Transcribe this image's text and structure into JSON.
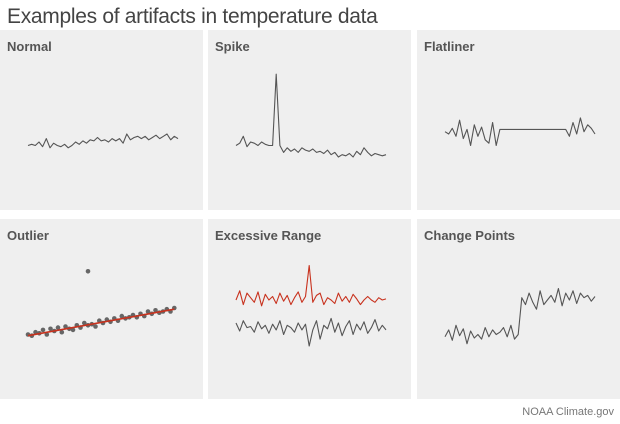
{
  "header": {
    "title": "Examples of artifacts in temperature data"
  },
  "credit": "NOAA Climate.gov",
  "colors": {
    "background": "#efefef",
    "line": "#555555",
    "trend": "#c8321e",
    "red_series": "#c8321e",
    "dots": "#666666"
  },
  "chart_data": [
    {
      "type": "line",
      "title": "Normal",
      "ylim": [
        0,
        100
      ],
      "x": [
        0,
        1,
        2,
        3,
        4,
        5,
        6,
        7,
        8,
        9,
        10,
        11,
        12,
        13,
        14,
        15,
        16,
        17,
        18,
        19,
        20,
        21,
        22,
        23,
        24,
        25,
        26,
        27,
        28,
        29,
        30,
        31,
        32,
        33,
        34,
        35,
        36,
        37,
        38,
        39,
        40,
        41
      ],
      "series": [
        {
          "values": [
            30,
            31,
            30,
            33,
            29,
            36,
            28,
            32,
            30,
            29,
            31,
            28,
            30,
            33,
            31,
            34,
            32,
            35,
            34,
            37,
            34,
            35,
            33,
            36,
            34,
            36,
            32,
            40,
            35,
            37,
            38,
            36,
            38,
            35,
            37,
            39,
            36,
            38,
            40,
            35,
            38,
            36
          ]
        }
      ]
    },
    {
      "type": "line",
      "title": "Spike",
      "ylim": [
        0,
        100
      ],
      "x": [
        0,
        1,
        2,
        3,
        4,
        5,
        6,
        7,
        8,
        9,
        10,
        11,
        12,
        13,
        14,
        15,
        16,
        17,
        18,
        19,
        20,
        21,
        22,
        23,
        24,
        25,
        26,
        27,
        28,
        29,
        30,
        31,
        32,
        33,
        34,
        35,
        36,
        37,
        38,
        39,
        40,
        41
      ],
      "series": [
        {
          "values": [
            30,
            32,
            38,
            29,
            33,
            32,
            30,
            33,
            31,
            30,
            30,
            92,
            30,
            24,
            28,
            25,
            27,
            24,
            28,
            26,
            25,
            27,
            24,
            25,
            23,
            26,
            22,
            24,
            20,
            22,
            21,
            23,
            20,
            25,
            22,
            28,
            24,
            21,
            23,
            22,
            21,
            22
          ]
        }
      ]
    },
    {
      "type": "line",
      "title": "Flatliner",
      "ylim": [
        0,
        100
      ],
      "x": [
        0,
        1,
        2,
        3,
        4,
        5,
        6,
        7,
        8,
        9,
        10,
        11,
        12,
        13,
        14,
        15,
        16,
        17,
        18,
        19,
        20,
        21,
        22,
        23,
        24,
        25,
        26,
        27,
        28,
        29,
        30,
        31,
        32,
        33,
        34,
        35,
        36,
        37,
        38,
        39,
        40,
        41
      ],
      "series": [
        {
          "values": [
            42,
            40,
            45,
            38,
            52,
            36,
            44,
            30,
            48,
            38,
            46,
            35,
            32,
            50,
            30,
            44,
            44,
            44,
            44,
            44,
            44,
            44,
            44,
            44,
            44,
            44,
            44,
            44,
            44,
            44,
            44,
            44,
            44,
            44,
            38,
            50,
            40,
            54,
            42,
            48,
            45,
            40
          ]
        }
      ]
    },
    {
      "type": "scatter",
      "title": "Outlier",
      "xlim": [
        0,
        40
      ],
      "ylim": [
        0,
        100
      ],
      "points": [
        [
          0,
          30
        ],
        [
          1,
          29
        ],
        [
          2,
          32
        ],
        [
          3,
          31
        ],
        [
          4,
          34
        ],
        [
          5,
          30
        ],
        [
          6,
          35
        ],
        [
          7,
          33
        ],
        [
          8,
          36
        ],
        [
          9,
          32
        ],
        [
          10,
          37
        ],
        [
          11,
          35
        ],
        [
          12,
          34
        ],
        [
          13,
          38
        ],
        [
          14,
          36
        ],
        [
          15,
          40
        ],
        [
          16,
          38
        ],
        [
          17,
          39
        ],
        [
          18,
          37
        ],
        [
          19,
          42
        ],
        [
          20,
          40
        ],
        [
          21,
          43
        ],
        [
          22,
          41
        ],
        [
          23,
          44
        ],
        [
          24,
          42
        ],
        [
          25,
          46
        ],
        [
          26,
          44
        ],
        [
          27,
          45
        ],
        [
          28,
          47
        ],
        [
          29,
          45
        ],
        [
          30,
          48
        ],
        [
          31,
          46
        ],
        [
          32,
          50
        ],
        [
          33,
          48
        ],
        [
          34,
          51
        ],
        [
          35,
          49
        ],
        [
          36,
          50
        ],
        [
          37,
          52
        ],
        [
          38,
          50
        ],
        [
          39,
          53
        ],
        [
          16,
          85
        ]
      ],
      "trend": {
        "x": [
          0,
          39
        ],
        "y": [
          29,
          52
        ]
      }
    },
    {
      "type": "line",
      "title": "Excessive Range",
      "ylim": [
        0,
        100
      ],
      "x": [
        0,
        1,
        2,
        3,
        4,
        5,
        6,
        7,
        8,
        9,
        10,
        11,
        12,
        13,
        14,
        15,
        16,
        17,
        18,
        19,
        20,
        21,
        22,
        23,
        24,
        25,
        26,
        27,
        28,
        29,
        30,
        31,
        32,
        33,
        34,
        35,
        36,
        37,
        38,
        39,
        40,
        41
      ],
      "series": [
        {
          "values": [
            60,
            68,
            56,
            66,
            62,
            58,
            67,
            55,
            65,
            60,
            63,
            57,
            66,
            59,
            64,
            56,
            62,
            67,
            58,
            63,
            90,
            58,
            64,
            66,
            56,
            62,
            60,
            57,
            66,
            59,
            63,
            58,
            65,
            61,
            56,
            60,
            63,
            60,
            58,
            62,
            60,
            61
          ]
        },
        {
          "values": [
            40,
            33,
            42,
            36,
            37,
            32,
            41,
            35,
            38,
            31,
            39,
            34,
            42,
            30,
            38,
            36,
            32,
            40,
            34,
            39,
            20,
            34,
            42,
            26,
            38,
            35,
            44,
            32,
            40,
            29,
            37,
            42,
            30,
            39,
            34,
            41,
            31,
            36,
            43,
            33,
            38,
            34
          ]
        }
      ]
    },
    {
      "type": "line",
      "title": "Change Points",
      "ylim": [
        0,
        100
      ],
      "x": [
        0,
        1,
        2,
        3,
        4,
        5,
        6,
        7,
        8,
        9,
        10,
        11,
        12,
        13,
        14,
        15,
        16,
        17,
        18,
        19,
        20,
        21,
        22,
        23,
        24,
        25,
        26,
        27,
        28,
        29,
        30,
        31,
        32,
        33,
        34,
        35,
        36,
        37,
        38,
        39,
        40,
        41
      ],
      "series": [
        {
          "values": [
            28,
            34,
            25,
            38,
            29,
            35,
            22,
            33,
            27,
            30,
            26,
            36,
            28,
            34,
            30,
            32,
            36,
            28,
            38,
            26,
            30,
            62,
            56,
            66,
            58,
            52,
            68,
            56,
            60,
            64,
            58,
            70,
            55,
            66,
            60,
            68,
            57,
            66,
            62,
            64,
            59,
            63
          ]
        }
      ]
    }
  ]
}
